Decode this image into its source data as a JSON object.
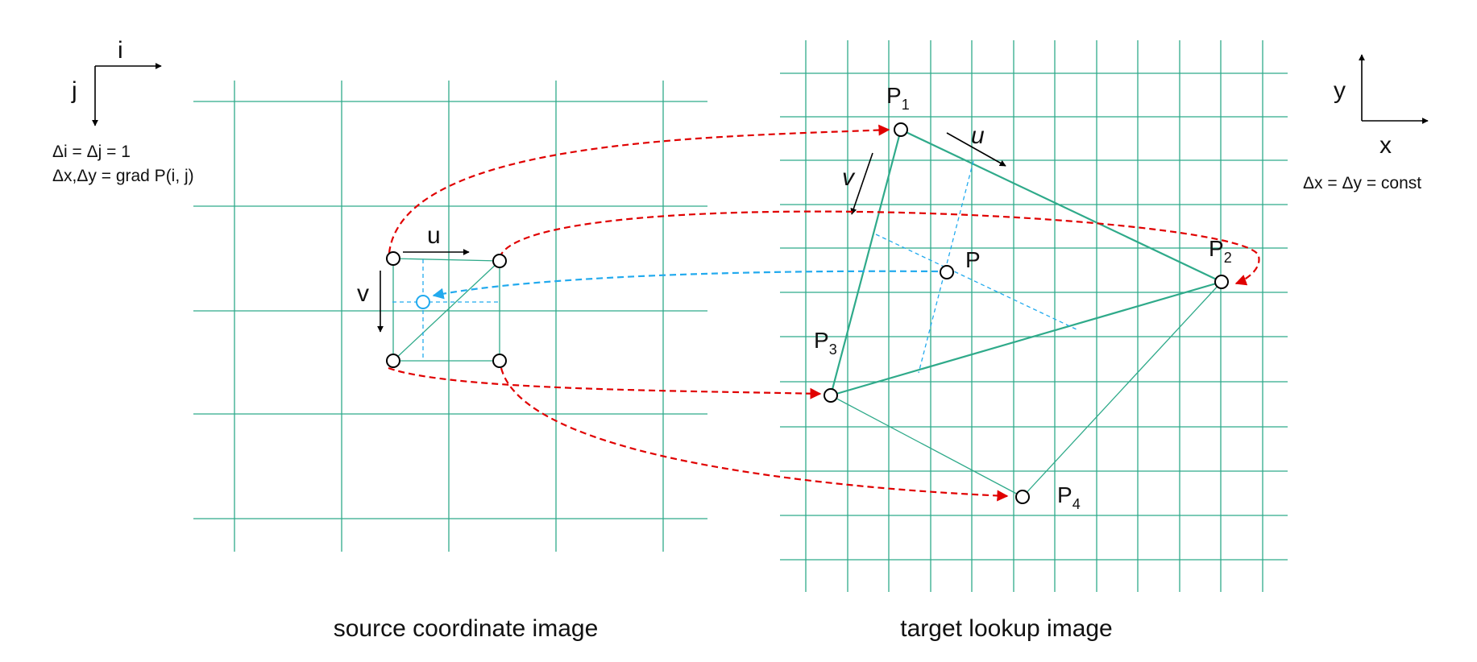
{
  "source_axes": {
    "i": "i",
    "j": "j"
  },
  "source_notes": {
    "line1": "Δi = Δj = 1",
    "line2": "Δx,Δy = grad P(i, j)"
  },
  "source_vectors": {
    "u": "u",
    "v": "v"
  },
  "target_axes": {
    "x": "x",
    "y": "y"
  },
  "target_note": "Δx = Δy = const",
  "target_vectors": {
    "u": "u",
    "v": "v"
  },
  "points": {
    "p1": {
      "base": "P",
      "sub": "1"
    },
    "p2": {
      "base": "P",
      "sub": "2"
    },
    "p3": {
      "base": "P",
      "sub": "3"
    },
    "p4": {
      "base": "P",
      "sub": "4"
    },
    "p": "P"
  },
  "captions": {
    "source": "source coordinate image",
    "target": "target lookup image"
  },
  "colors": {
    "grid": "#2faa8a",
    "mapping": "#e00000",
    "lookup": "#22aaee"
  }
}
